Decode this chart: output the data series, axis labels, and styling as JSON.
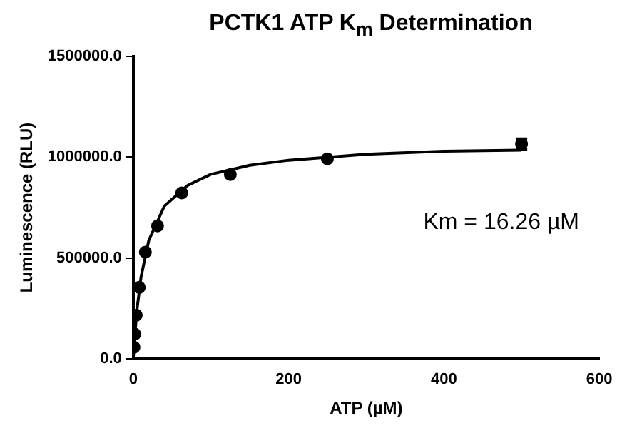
{
  "chart_data": {
    "type": "scatter",
    "title": "PCTK1 ATP K$_{m}$ Determination",
    "xlabel": "ATP (µM)",
    "ylabel": "Luminescence (RLU)",
    "xlim": [
      0,
      600
    ],
    "xticks": [
      0,
      200,
      400,
      600
    ],
    "ylim": [
      0,
      1500000
    ],
    "yticks": [
      {
        "value": 0,
        "label": "0.0"
      },
      {
        "value": 500000,
        "label": "500000.0"
      },
      {
        "value": 1000000,
        "label": "1000000.0"
      },
      {
        "value": 1500000,
        "label": "1500000.0"
      }
    ],
    "grid": false,
    "legend": false,
    "marker": "circle",
    "series": [
      {
        "type": "scatter",
        "color": "#000000",
        "x": [
          0.98,
          1.95,
          3.9,
          7.8,
          15.6,
          31.25,
          62.5,
          125,
          250,
          500
        ],
        "values": [
          57000,
          122000,
          216000,
          354000,
          529000,
          659000,
          823000,
          914000,
          992000,
          1065000
        ],
        "errors": [
          null,
          null,
          null,
          null,
          null,
          null,
          null,
          null,
          null,
          26000
        ]
      },
      {
        "type": "line",
        "color": "#000000",
        "marker": "none",
        "x": [
          0,
          2,
          5,
          10,
          20,
          40,
          70,
          100,
          150,
          200,
          300,
          400,
          500
        ],
        "values": [
          0,
          116000,
          250000,
          405000,
          587000,
          757000,
          860000,
          915000,
          960000,
          985000,
          1015000,
          1030000,
          1035000
        ]
      }
    ],
    "annotations": [
      "Km = 16.26 µM"
    ]
  }
}
